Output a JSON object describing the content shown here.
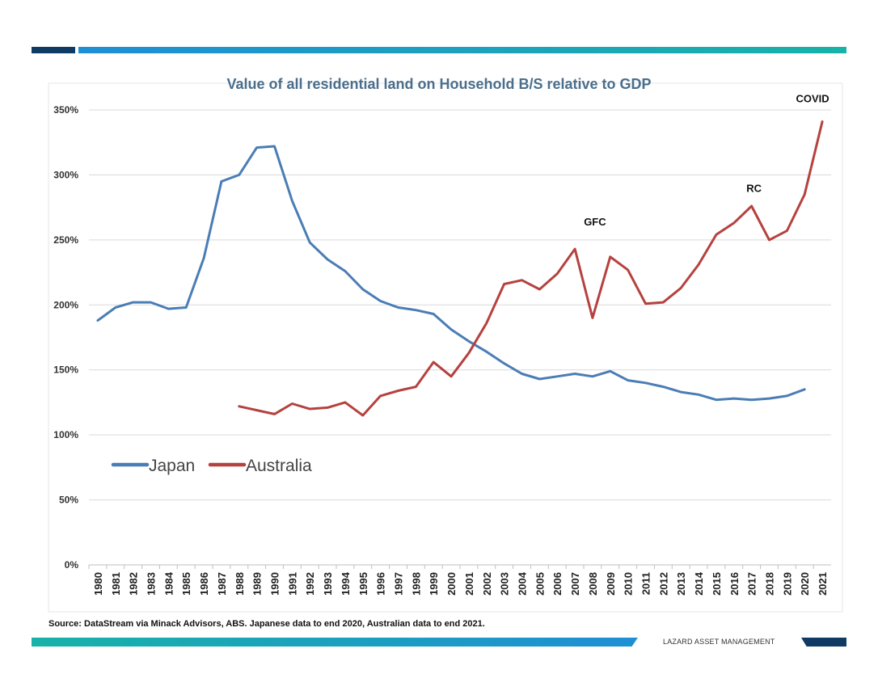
{
  "brand": {
    "name": "LAZARD ASSET MANAGEMENT",
    "color_dark": "#0e3a63",
    "color_blue": "#1f8fd4",
    "color_teal": "#18b2a8"
  },
  "footer": {
    "source": "Source: DataStream via Minack Advisors, ABS.  Japanese data to end 2020, Australian data to end 2021."
  },
  "chart_data": {
    "type": "line",
    "title": "Value of all residential land on Household B/S relative to GDP",
    "title_color": "#4a6e8c",
    "xlabel": "",
    "ylabel": "",
    "ylim": [
      0,
      350
    ],
    "yticks": [
      0,
      50,
      100,
      150,
      200,
      250,
      300,
      350
    ],
    "ytick_labels": [
      "0%",
      "50%",
      "100%",
      "150%",
      "200%",
      "250%",
      "300%",
      "350%"
    ],
    "grid": true,
    "legend": "middle-left",
    "x": [
      "1980",
      "1981",
      "1982",
      "1983",
      "1984",
      "1985",
      "1986",
      "1987",
      "1988",
      "1989",
      "1990",
      "1991",
      "1992",
      "1993",
      "1994",
      "1995",
      "1996",
      "1997",
      "1998",
      "1999",
      "2000",
      "2001",
      "2002",
      "2003",
      "2004",
      "2005",
      "2006",
      "2007",
      "2008",
      "2009",
      "2010",
      "2011",
      "2012",
      "2013",
      "2014",
      "2015",
      "2016",
      "2017",
      "2018",
      "2019",
      "2020",
      "2021"
    ],
    "series": [
      {
        "name": "Japan",
        "color": "#4a7db5",
        "values": [
          188,
          198,
          202,
          202,
          197,
          198,
          236,
          295,
          300,
          321,
          322,
          280,
          248,
          235,
          226,
          212,
          203,
          198,
          196,
          193,
          181,
          172,
          164,
          155,
          147,
          143,
          145,
          147,
          145,
          149,
          142,
          140,
          137,
          133,
          131,
          127,
          128,
          127,
          128,
          130,
          135,
          null
        ]
      },
      {
        "name": "Australia",
        "color": "#b5423f",
        "values": [
          null,
          null,
          null,
          null,
          null,
          null,
          null,
          null,
          122,
          119,
          116,
          124,
          120,
          121,
          125,
          115,
          130,
          134,
          137,
          156,
          145,
          163,
          186,
          216,
          219,
          212,
          224,
          243,
          190,
          237,
          227,
          201,
          202,
          213,
          231,
          254,
          263,
          276,
          250,
          257,
          285,
          341
        ]
      }
    ],
    "annotations": [
      {
        "text": "GFC",
        "x": "2008",
        "y": 261
      },
      {
        "text": "RC",
        "x": "2017",
        "y": 287
      },
      {
        "text": "COVID",
        "x": "2021",
        "y": 356
      }
    ]
  }
}
